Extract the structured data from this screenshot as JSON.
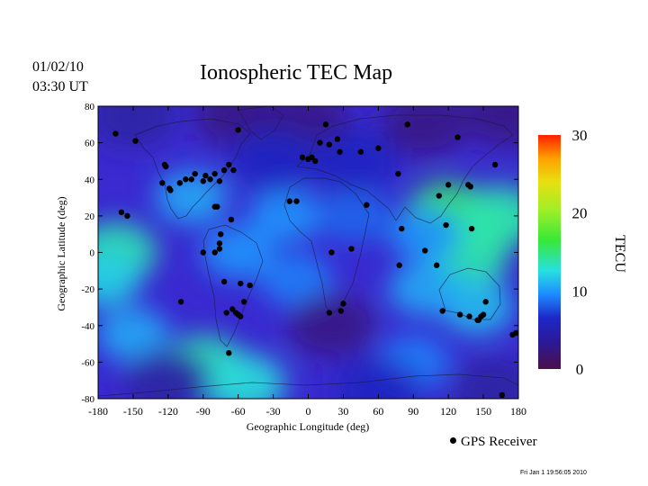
{
  "header": {
    "date": "01/02/10",
    "time": "03:30 UT",
    "title": "Ionospheric TEC Map"
  },
  "footer": {
    "timestamp": "Fri Jan  1 19:56:05 2010",
    "legend_label": "GPS Receiver"
  },
  "chart_data": {
    "type": "heatmap",
    "title": "Ionospheric TEC Map",
    "xlabel": "Geographic Longitude (deg)",
    "ylabel": "Geographic Latitude (deg)",
    "xlim": [
      -180,
      180
    ],
    "ylim": [
      -80,
      80
    ],
    "xticks": [
      -180,
      -150,
      -120,
      -90,
      -60,
      -30,
      0,
      30,
      60,
      90,
      120,
      150,
      180
    ],
    "yticks": [
      80,
      60,
      40,
      20,
      0,
      -20,
      -40,
      -60,
      -80
    ],
    "colorbar": {
      "label": "TECU",
      "range": [
        0,
        30
      ],
      "ticks": [
        30,
        20,
        10,
        0
      ]
    },
    "colorscale": [
      "#4b0f4b",
      "#1d28c8",
      "#1e8cff",
      "#28e0e0",
      "#38e838",
      "#c8ee28",
      "#ffb000",
      "#ff2000"
    ],
    "grid": false,
    "legend": {
      "position": "bottom-right",
      "entries": [
        "GPS Receiver"
      ]
    },
    "tec_features": [
      {
        "lon": 145,
        "lat": 12,
        "tec": 17
      },
      {
        "lon": 120,
        "lat": 22,
        "tec": 16
      },
      {
        "lon": 165,
        "lat": 20,
        "tec": 14
      },
      {
        "lon": 135,
        "lat": -5,
        "tec": 14
      },
      {
        "lon": 145,
        "lat": -30,
        "tec": 11
      },
      {
        "lon": 100,
        "lat": 10,
        "tec": 9
      },
      {
        "lon": 100,
        "lat": -20,
        "tec": 10
      },
      {
        "lon": -165,
        "lat": 0,
        "tec": 14
      },
      {
        "lon": -175,
        "lat": -15,
        "tec": 12
      },
      {
        "lon": -150,
        "lat": -45,
        "tec": 10
      },
      {
        "lon": -90,
        "lat": -62,
        "tec": 14
      },
      {
        "lon": -55,
        "lat": -72,
        "tec": 13
      },
      {
        "lon": -20,
        "lat": 20,
        "tec": 9
      },
      {
        "lon": -10,
        "lat": -15,
        "tec": 8
      },
      {
        "lon": 40,
        "lat": 20,
        "tec": 7
      },
      {
        "lon": 90,
        "lat": -60,
        "tec": 8
      },
      {
        "lon": -100,
        "lat": 30,
        "tec": 10
      },
      {
        "lon": -60,
        "lat": 0,
        "tec": 9
      },
      {
        "lon": 20,
        "lat": -40,
        "tec": 2
      },
      {
        "lon": 0,
        "lat": 70,
        "tec": 2
      },
      {
        "lon": -60,
        "lat": 75,
        "tec": 2
      },
      {
        "lon": 100,
        "lat": 70,
        "tec": 2
      },
      {
        "lon": 170,
        "lat": 75,
        "tec": 2
      },
      {
        "lon": -150,
        "lat": 75,
        "tec": 3
      },
      {
        "lon": -120,
        "lat": -70,
        "tec": 3
      },
      {
        "lon": 60,
        "lat": -75,
        "tec": 4
      },
      {
        "lon": 160,
        "lat": -75,
        "tec": 3
      },
      {
        "lon": -30,
        "lat": 50,
        "tec": 4
      },
      {
        "lon": 40,
        "lat": 50,
        "tec": 4
      }
    ],
    "receivers": [
      [
        -165,
        65
      ],
      [
        -148,
        61
      ],
      [
        -123,
        48
      ],
      [
        -122,
        47
      ],
      [
        -125,
        38
      ],
      [
        -119,
        35
      ],
      [
        -118,
        34
      ],
      [
        -110,
        38
      ],
      [
        -105,
        40
      ],
      [
        -100,
        40
      ],
      [
        -97,
        43
      ],
      [
        -90,
        39
      ],
      [
        -88,
        42
      ],
      [
        -84,
        40
      ],
      [
        -80,
        43
      ],
      [
        -76,
        39
      ],
      [
        -72,
        45
      ],
      [
        -68,
        48
      ],
      [
        -64,
        45
      ],
      [
        -80,
        25
      ],
      [
        -78,
        25
      ],
      [
        -66,
        18
      ],
      [
        -160,
        22
      ],
      [
        -155,
        20
      ],
      [
        -90,
        0
      ],
      [
        -80,
        0
      ],
      [
        -76,
        5
      ],
      [
        -76,
        2
      ],
      [
        -75,
        10
      ],
      [
        -72,
        -16
      ],
      [
        -70,
        -33
      ],
      [
        -65,
        -31
      ],
      [
        -62,
        -33
      ],
      [
        -60,
        -34
      ],
      [
        -58,
        -35
      ],
      [
        -55,
        -27
      ],
      [
        -50,
        -18
      ],
      [
        -109,
        -27
      ],
      [
        -68,
        -55
      ],
      [
        -60,
        67
      ],
      [
        -10,
        28
      ],
      [
        -5,
        52
      ],
      [
        0,
        51
      ],
      [
        3,
        52
      ],
      [
        6,
        50
      ],
      [
        10,
        60
      ],
      [
        15,
        70
      ],
      [
        18,
        59
      ],
      [
        25,
        62
      ],
      [
        27,
        55
      ],
      [
        45,
        55
      ],
      [
        60,
        57
      ],
      [
        85,
        70
      ],
      [
        77,
        43
      ],
      [
        50,
        26
      ],
      [
        37,
        2
      ],
      [
        20,
        0
      ],
      [
        30,
        -28
      ],
      [
        28,
        -32
      ],
      [
        18,
        -33
      ],
      [
        -16,
        28
      ],
      [
        80,
        13
      ],
      [
        78,
        -7
      ],
      [
        100,
        1
      ],
      [
        110,
        -7
      ],
      [
        112,
        31
      ],
      [
        118,
        15
      ],
      [
        120,
        37
      ],
      [
        128,
        63
      ],
      [
        137,
        37
      ],
      [
        139,
        36
      ],
      [
        140,
        13
      ],
      [
        115,
        -32
      ],
      [
        130,
        -34
      ],
      [
        138,
        -35
      ],
      [
        145,
        -37
      ],
      [
        148,
        -35
      ],
      [
        150,
        -34
      ],
      [
        152,
        -27
      ],
      [
        160,
        48
      ],
      [
        175,
        -45
      ],
      [
        178,
        -44
      ],
      [
        166,
        -78
      ],
      [
        146,
        -37
      ],
      [
        -58,
        -17
      ]
    ]
  }
}
